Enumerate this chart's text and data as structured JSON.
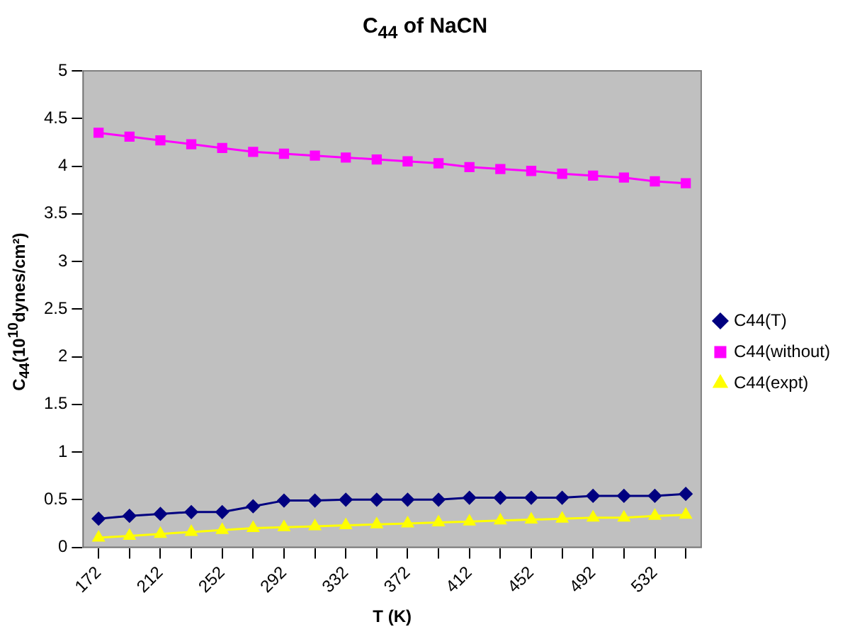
{
  "chart_data": {
    "type": "line",
    "title": "C$_{44}$ of NaCN",
    "xlabel": "T (K)",
    "ylabel": "C$_{44}$(10$^{10}$dynes/cm²)",
    "categories": [
      "172",
      null,
      "212",
      null,
      "252",
      null,
      "292",
      null,
      "332",
      null,
      "372",
      null,
      "412",
      null,
      "452",
      null,
      "492",
      null,
      "532",
      null
    ],
    "series": [
      {
        "name": "C44(T)",
        "color": "#000080",
        "marker": "diamond",
        "values": [
          0.3,
          0.33,
          0.35,
          0.37,
          0.37,
          0.43,
          0.49,
          0.49,
          0.5,
          0.5,
          0.5,
          0.5,
          0.52,
          0.52,
          0.52,
          0.52,
          0.54,
          0.54,
          0.54,
          0.56
        ]
      },
      {
        "name": "C44(without)",
        "color": "#ff00ff",
        "marker": "square",
        "values": [
          4.35,
          4.31,
          4.27,
          4.23,
          4.19,
          4.15,
          4.13,
          4.11,
          4.09,
          4.07,
          4.05,
          4.03,
          3.99,
          3.97,
          3.95,
          3.92,
          3.9,
          3.88,
          3.84,
          3.82
        ]
      },
      {
        "name": "C44(expt)",
        "color": "#ffff00",
        "marker": "triangle",
        "values": [
          0.1,
          0.12,
          0.14,
          0.16,
          0.18,
          0.2,
          0.21,
          0.22,
          0.23,
          0.24,
          0.25,
          0.26,
          0.27,
          0.28,
          0.29,
          0.3,
          0.31,
          0.31,
          0.33,
          0.34
        ]
      }
    ],
    "ylim": [
      0,
      5
    ],
    "yticks": [
      0,
      0.5,
      1,
      1.5,
      2,
      2.5,
      3,
      3.5,
      4,
      4.5,
      5
    ],
    "grid": false,
    "legend": "right",
    "line_style": "solid"
  }
}
